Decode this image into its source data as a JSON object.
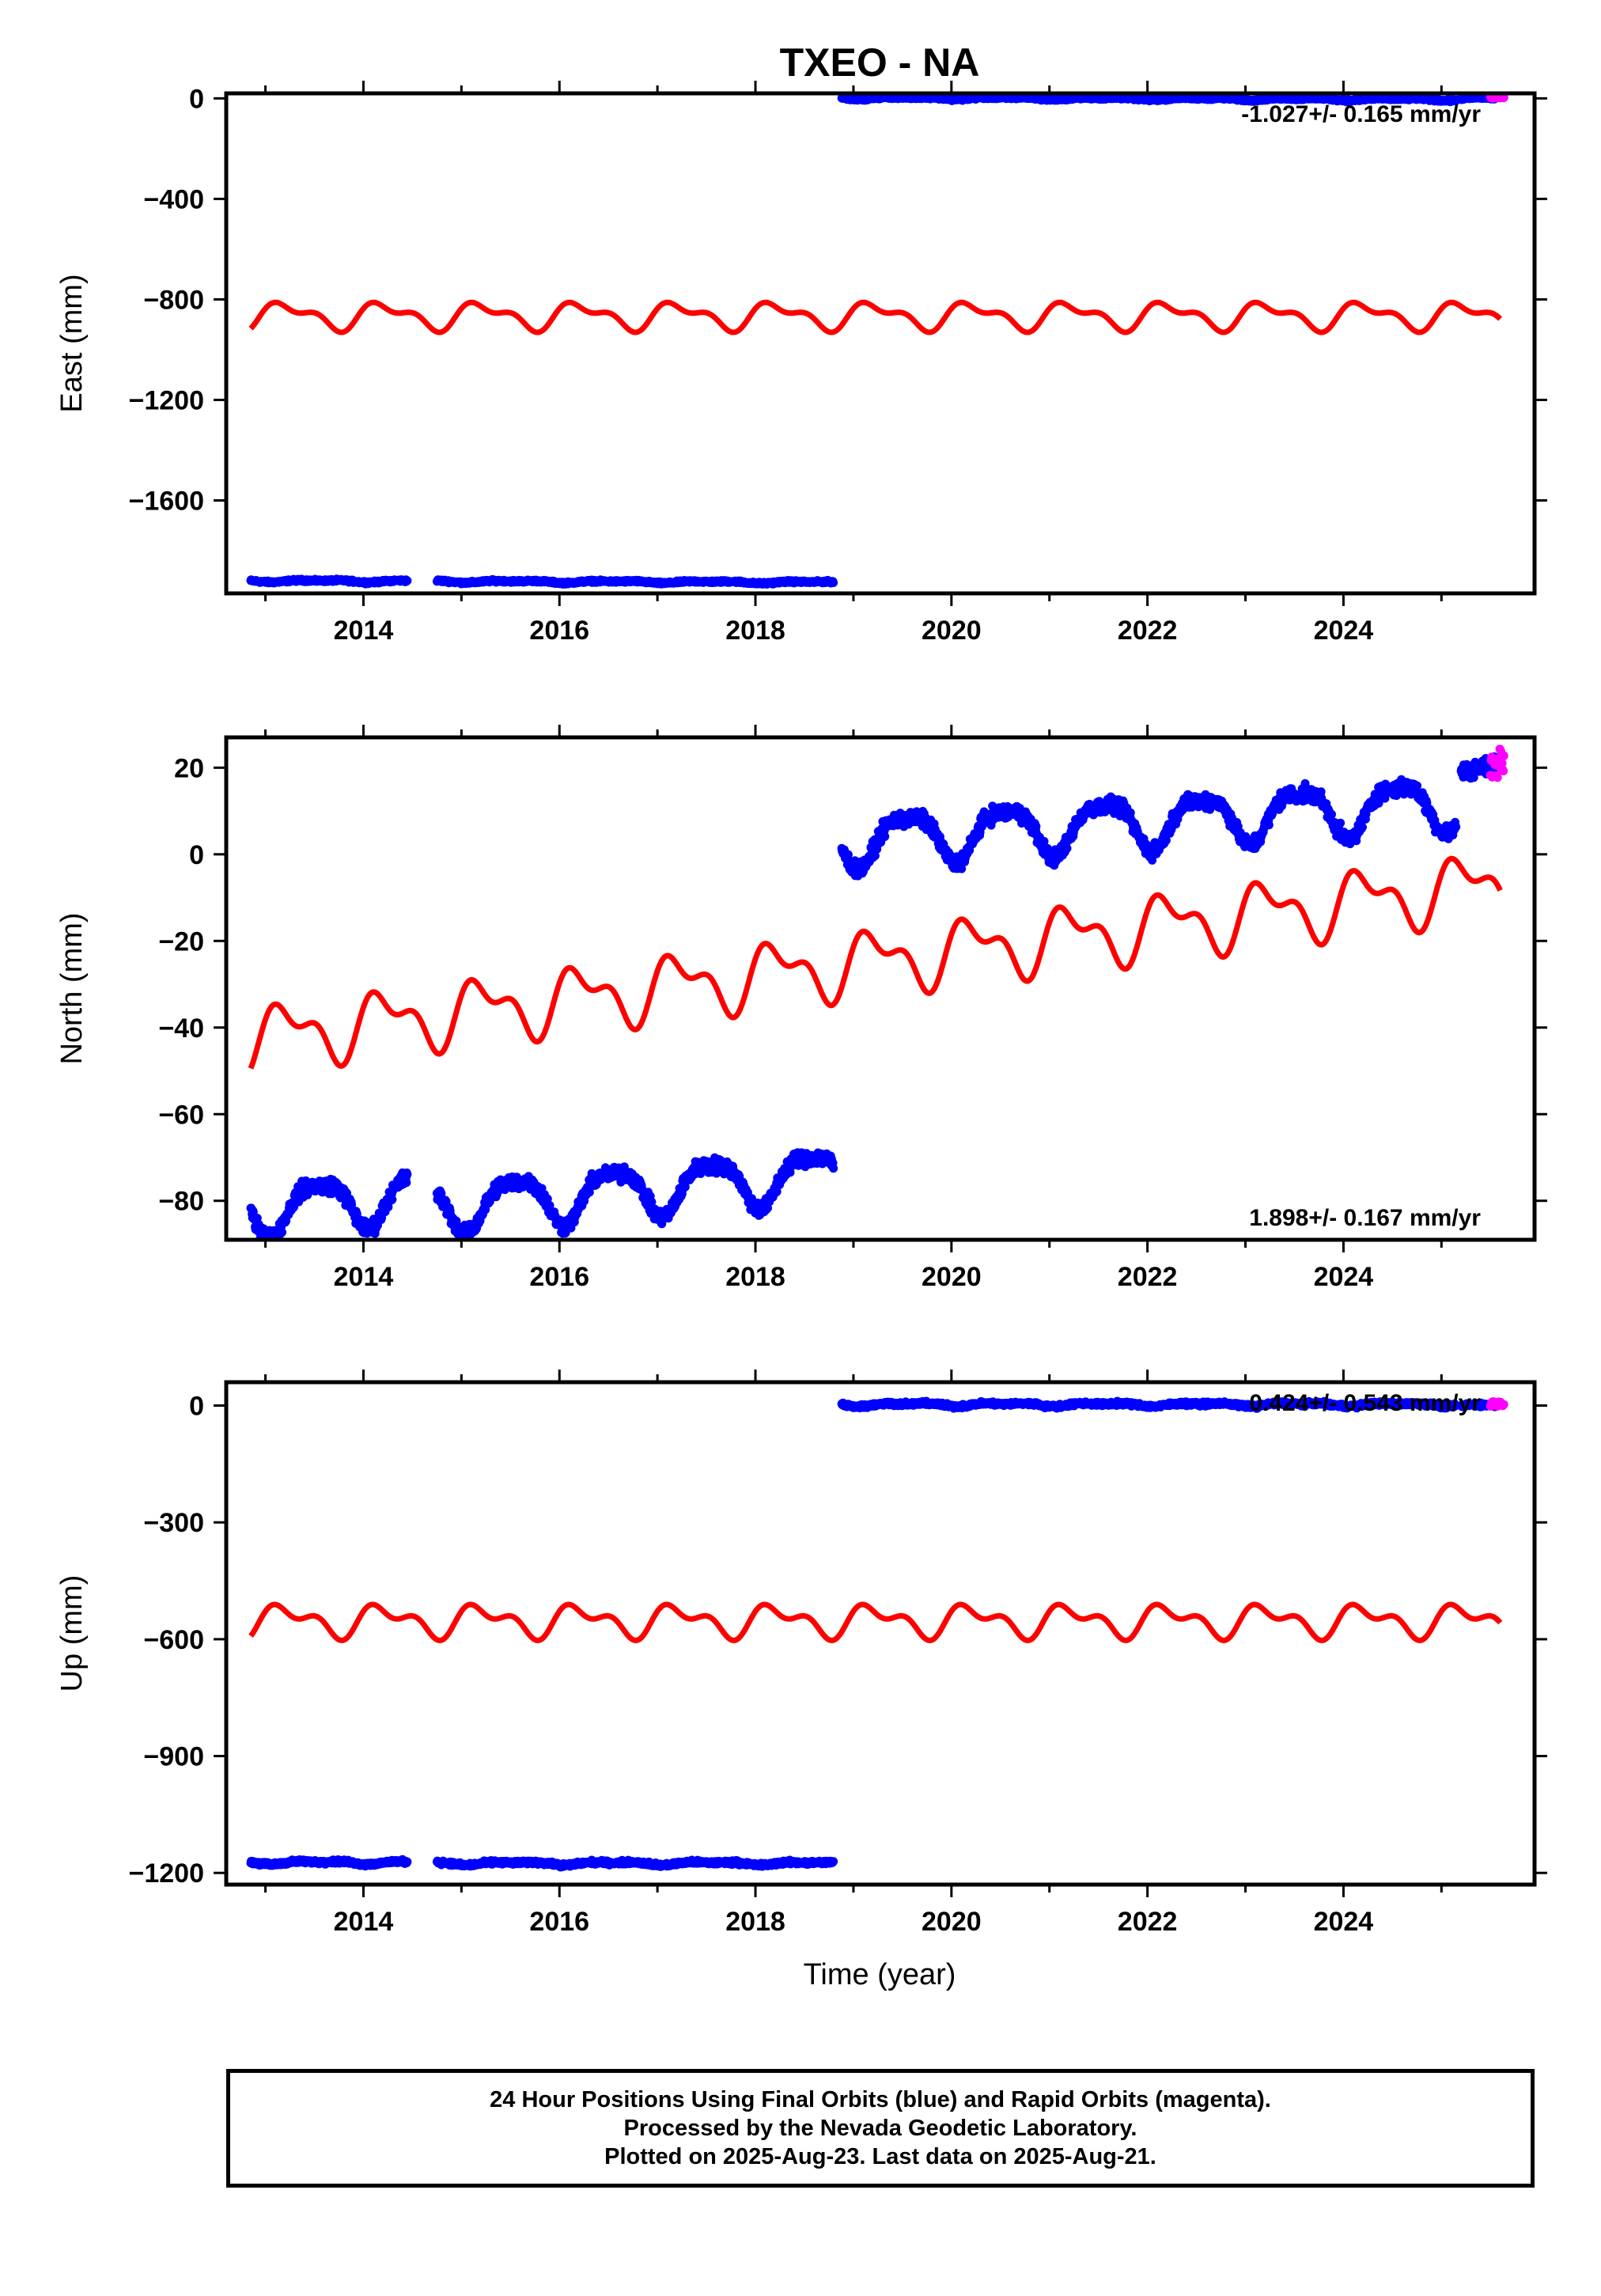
{
  "title": "TXEO - NA",
  "x_axis_title": "Time (year)",
  "footer": {
    "lines": [
      "24 Hour Positions Using Final Orbits (blue) and Rapid Orbits (magenta).",
      "Processed by the Nevada Geodetic Laboratory.",
      "Plotted on 2025-Aug-23. Last data on 2025-Aug-21."
    ]
  },
  "colors": {
    "final": "#0000ff",
    "rapid": "#ff00ff",
    "model": "#ff0000"
  },
  "chart_data": [
    {
      "type": "scatter",
      "ylabel": "East (mm)",
      "xlim": [
        2012.6,
        2025.95
      ],
      "ylim": [
        -1970,
        20
      ],
      "xticks": [
        2014,
        2016,
        2018,
        2020,
        2022,
        2024
      ],
      "yticks": [
        0,
        -400,
        -800,
        -1200,
        -1600
      ],
      "ytick_labels": [
        "0",
        "−400",
        "−800",
        "−1200",
        "−1600"
      ],
      "rate_label": "-1.027+/- 0.165 mm/yr",
      "series": [
        {
          "style": "points",
          "segments": [
            {
              "x0": 2012.85,
              "x1": 2014.45,
              "y": -1920,
              "amp": 3,
              "noise": 4,
              "trend": -1.0,
              "period_amp": 2
            },
            {
              "x0": 2014.75,
              "x1": 2018.8,
              "y": -1922,
              "amp": 3,
              "noise": 4,
              "trend": -1.0,
              "period_amp": 2
            },
            {
              "x0": 2018.88,
              "x1": 2025.15,
              "y": 2,
              "amp": 3,
              "noise": 4,
              "trend": -1.0,
              "period_amp": 2
            },
            {
              "x0": 2025.2,
              "x1": 2025.55,
              "y": 0,
              "amp": 3,
              "noise": 4,
              "trend": -1.0,
              "period_amp": 2
            }
          ]
        },
        {
          "style": "rapid",
          "segments": [
            {
              "x0": 2025.5,
              "x1": 2025.64,
              "y": 5,
              "amp": 0,
              "noise": 5,
              "trend": 0,
              "period_amp": 0
            }
          ]
        },
        {
          "style": "model",
          "model": {
            "x0": 2012.85,
            "x1": 2025.6,
            "base": -865,
            "trend": 0,
            "a1": 45,
            "a2": 25,
            "phase1": 0.22,
            "phase2": 0.55,
            "ref": 2019
          }
        }
      ]
    },
    {
      "type": "scatter",
      "ylabel": "North (mm)",
      "xlim": [
        2012.6,
        2025.95
      ],
      "ylim": [
        -89,
        27
      ],
      "xticks": [
        2014,
        2016,
        2018,
        2020,
        2022,
        2024
      ],
      "yticks": [
        20,
        0,
        -20,
        -40,
        -60,
        -80
      ],
      "ytick_labels": [
        "20",
        "0",
        "−20",
        "−40",
        "−60",
        "−80"
      ],
      "rate_label": "1.898+/- 0.167 mm/yr",
      "series": [
        {
          "style": "points",
          "segments": [
            {
              "x0": 2012.85,
              "x1": 2014.45,
              "y": -80.5,
              "amp": 5.5,
              "noise": 1.5,
              "trend": 1.9,
              "period_amp": 1.5,
              "ref": 2013.6
            },
            {
              "x0": 2014.75,
              "x1": 2018.8,
              "y": -79.5,
              "amp": 5.5,
              "noise": 1.5,
              "trend": 1.9,
              "period_amp": 1.5,
              "ref": 2015.7
            },
            {
              "x0": 2018.88,
              "x1": 2025.15,
              "y": 4.5,
              "amp": 5.5,
              "noise": 1.5,
              "trend": 1.4,
              "period_amp": 1.5,
              "ref": 2019.8
            },
            {
              "x0": 2025.2,
              "x1": 2025.55,
              "y": 19.5,
              "amp": 1,
              "noise": 1.5,
              "trend": 0,
              "period_amp": 0,
              "ref": 2025.3
            }
          ]
        },
        {
          "style": "rapid",
          "segments": [
            {
              "x0": 2025.5,
              "x1": 2025.64,
              "y": 21,
              "amp": 0,
              "noise": 2.5,
              "trend": 0,
              "period_amp": 0
            }
          ]
        },
        {
          "style": "model",
          "model": {
            "x0": 2012.85,
            "x1": 2025.6,
            "base": -42.5,
            "trend": 2.8,
            "a1": 6,
            "a2": 3.5,
            "phase1": 0.22,
            "phase2": 0.55,
            "ref": 2012.85
          }
        }
      ]
    },
    {
      "type": "scatter",
      "ylabel": "Up (mm)",
      "xlim": [
        2012.6,
        2025.95
      ],
      "ylim": [
        -1230,
        60
      ],
      "xticks": [
        2014,
        2016,
        2018,
        2020,
        2022,
        2024
      ],
      "yticks": [
        0,
        -300,
        -600,
        -900,
        -1200
      ],
      "ytick_labels": [
        "0",
        "−300",
        "−600",
        "−900",
        "−1200"
      ],
      "rate_label": "0.424+/- 0.543 mm/yr",
      "series": [
        {
          "style": "points",
          "segments": [
            {
              "x0": 2012.85,
              "x1": 2014.45,
              "y": -1173,
              "amp": 3,
              "noise": 4,
              "trend": 0,
              "period_amp": 2
            },
            {
              "x0": 2014.75,
              "x1": 2018.8,
              "y": -1175,
              "amp": 3,
              "noise": 4,
              "trend": 0,
              "period_amp": 2
            },
            {
              "x0": 2018.88,
              "x1": 2025.15,
              "y": 3,
              "amp": 3,
              "noise": 4,
              "trend": 0,
              "period_amp": 2
            },
            {
              "x0": 2025.2,
              "x1": 2025.55,
              "y": 0,
              "amp": 3,
              "noise": 4,
              "trend": 0,
              "period_amp": 2
            }
          ]
        },
        {
          "style": "rapid",
          "segments": [
            {
              "x0": 2025.5,
              "x1": 2025.64,
              "y": 5,
              "amp": 0,
              "noise": 6,
              "trend": 0,
              "period_amp": 0
            }
          ]
        },
        {
          "style": "model",
          "model": {
            "x0": 2012.85,
            "x1": 2025.6,
            "base": -552,
            "trend": 0,
            "a1": 32,
            "a2": 22,
            "phase1": 0.22,
            "phase2": 0.55,
            "ref": 2019
          }
        }
      ]
    }
  ]
}
